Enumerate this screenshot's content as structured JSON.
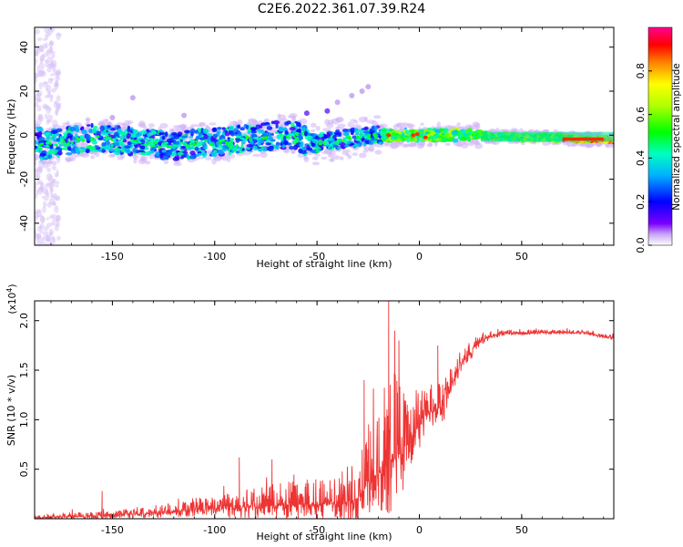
{
  "title": "C2E6.2022.361.07.39.R24",
  "charts": {
    "spectrogram": {
      "type": "heatmap",
      "xlabel": "Height of straight line (km)",
      "ylabel": "Frequency (Hz)",
      "xlim": [
        -188,
        95
      ],
      "ylim": [
        -50,
        49
      ],
      "xticks": [
        -150,
        -100,
        -50,
        0,
        50
      ],
      "yticks": [
        -40,
        -20,
        0,
        20,
        40
      ],
      "track": [
        {
          "x": -185,
          "y": -5
        },
        {
          "x": -175,
          "y": -3
        },
        {
          "x": -160,
          "y": -1
        },
        {
          "x": -150,
          "y": -2
        },
        {
          "x": -140,
          "y": -3
        },
        {
          "x": -130,
          "y": -4
        },
        {
          "x": -120,
          "y": -5
        },
        {
          "x": -110,
          "y": -4
        },
        {
          "x": -100,
          "y": -3
        },
        {
          "x": -90,
          "y": -2
        },
        {
          "x": -80,
          "y": -1
        },
        {
          "x": -70,
          "y": 0
        },
        {
          "x": -60,
          "y": 0
        },
        {
          "x": -55,
          "y": -3
        },
        {
          "x": -50,
          "y": -4
        },
        {
          "x": -40,
          "y": -2
        },
        {
          "x": -30,
          "y": -1
        },
        {
          "x": -20,
          "y": 0
        },
        {
          "x": -10,
          "y": 0
        },
        {
          "x": 0,
          "y": 0
        },
        {
          "x": 10,
          "y": 0
        },
        {
          "x": 30,
          "y": 0
        },
        {
          "x": 50,
          "y": -1
        },
        {
          "x": 70,
          "y": -1
        },
        {
          "x": 80,
          "y": -2
        },
        {
          "x": 95,
          "y": -2
        }
      ]
    },
    "colorbar": {
      "label": "Normalized spectral amplitude",
      "range": [
        0,
        1
      ],
      "ticks": [
        "0.0",
        "0.2",
        "0.4",
        "0.6",
        "0.8"
      ],
      "tick_values": [
        0,
        0.2,
        0.4,
        0.6,
        0.8
      ]
    },
    "snr": {
      "type": "line",
      "xlabel": "Height of straight line (km)",
      "ylabel": "SNR (10 * v/v)",
      "multiplier": "(x10^4)",
      "xlim": [
        -188,
        95
      ],
      "ylim": [
        0,
        2.2
      ],
      "xticks": [
        -150,
        -100,
        -50,
        0,
        50
      ],
      "yticks": [
        0.5,
        1.0,
        1.5,
        2.0
      ],
      "line_color": "#ee3333",
      "envelope": [
        {
          "x": -188,
          "base": 0.01,
          "amp": 0.04
        },
        {
          "x": -150,
          "base": 0.03,
          "amp": 0.05
        },
        {
          "x": -120,
          "base": 0.07,
          "amp": 0.1
        },
        {
          "x": -100,
          "base": 0.1,
          "amp": 0.15
        },
        {
          "x": -80,
          "base": 0.12,
          "amp": 0.2
        },
        {
          "x": -60,
          "base": 0.14,
          "amp": 0.25
        },
        {
          "x": -40,
          "base": 0.15,
          "amp": 0.3
        },
        {
          "x": -30,
          "base": 0.2,
          "amp": 0.5
        },
        {
          "x": -25,
          "base": 0.35,
          "amp": 0.5
        },
        {
          "x": -18,
          "base": 0.5,
          "amp": 0.8
        },
        {
          "x": -12,
          "base": 0.6,
          "amp": 0.9
        },
        {
          "x": -5,
          "base": 0.75,
          "amp": 0.5
        },
        {
          "x": 0,
          "base": 0.95,
          "amp": 0.4
        },
        {
          "x": 5,
          "base": 1.05,
          "amp": 0.3
        },
        {
          "x": 12,
          "base": 1.15,
          "amp": 0.3
        },
        {
          "x": 20,
          "base": 1.55,
          "amp": 0.15
        },
        {
          "x": 30,
          "base": 1.8,
          "amp": 0.08
        },
        {
          "x": 40,
          "base": 1.87,
          "amp": 0.04
        },
        {
          "x": 60,
          "base": 1.88,
          "amp": 0.03
        },
        {
          "x": 80,
          "base": 1.88,
          "amp": 0.03
        },
        {
          "x": 95,
          "base": 1.82,
          "amp": 0.03
        }
      ]
    }
  }
}
